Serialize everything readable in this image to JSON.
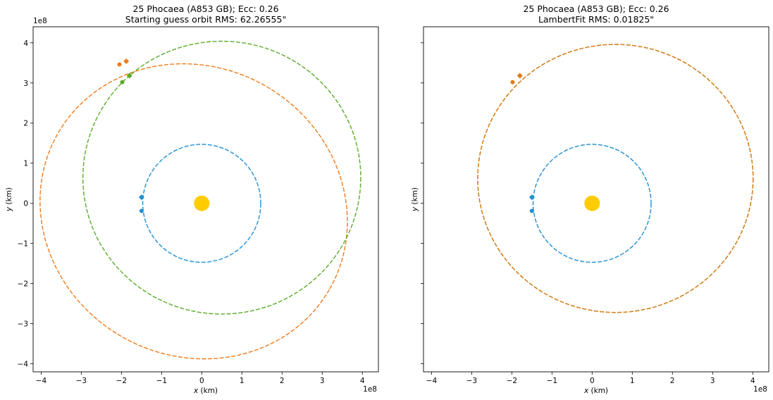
{
  "chart_data": [
    {
      "type": "scatter",
      "title_line1": "25 Phocaea (A853 GB); Ecc: 0.26",
      "title_line2": "Starting guess orbit RMS: 62.26555\"",
      "xlabel_var": "x",
      "xlabel_unit": " (km)",
      "ylabel_var": "y",
      "ylabel_unit": " (km)",
      "x_offset_label": "1e8",
      "y_offset_label": "1e8",
      "xlim": [
        -4.2,
        4.4
      ],
      "ylim": [
        -4.2,
        4.4
      ],
      "xticks": [
        "−4",
        "−3",
        "−2",
        "−1",
        "0",
        "1",
        "2",
        "3",
        "4"
      ],
      "yticks": [
        "−4",
        "−3",
        "−2",
        "−1",
        "0",
        "1",
        "2",
        "3",
        "4"
      ],
      "show_ytick_labels": true,
      "sun": {
        "x": 0,
        "y": 0,
        "color": "#ffcc00"
      },
      "orbits": [
        {
          "cx": 0,
          "cy": 0,
          "a": 1.47,
          "b": 1.47,
          "rot": 0,
          "color": "#1f8fd1"
        },
        {
          "cx": -0.2,
          "cy": -0.2,
          "a": 3.9,
          "b": 3.6,
          "rot": -30,
          "color": "#f07a1a"
        },
        {
          "cx": 0.5,
          "cy": 0.64,
          "a": 3.46,
          "b": 3.4,
          "rot": 0,
          "color": "#5aab2a"
        }
      ],
      "markers": [
        {
          "x": -1.5,
          "y": 0.15,
          "shape": "diamond",
          "color": "#1f8fd1"
        },
        {
          "x": -1.5,
          "y": -0.19,
          "shape": "circle",
          "color": "#1f8fd1"
        },
        {
          "x": -1.88,
          "y": 3.54,
          "shape": "diamond",
          "color": "#f07a1a"
        },
        {
          "x": -2.05,
          "y": 3.46,
          "shape": "circle",
          "color": "#f07a1a"
        },
        {
          "x": -1.8,
          "y": 3.18,
          "shape": "diamond",
          "color": "#5aab2a"
        },
        {
          "x": -1.98,
          "y": 3.02,
          "shape": "circle",
          "color": "#5aab2a"
        }
      ]
    },
    {
      "type": "scatter",
      "title_line1": "25 Phocaea (A853 GB); Ecc: 0.26",
      "title_line2": "LambertFit RMS: 0.01825\"",
      "xlabel_var": "x",
      "xlabel_unit": " (km)",
      "ylabel_var": "y",
      "ylabel_unit": " (km)",
      "x_offset_label": "1e8",
      "y_offset_label": "",
      "xlim": [
        -4.2,
        4.4
      ],
      "ylim": [
        -4.2,
        4.4
      ],
      "xticks": [
        "−4",
        "−3",
        "−2",
        "−1",
        "0",
        "1",
        "2",
        "3",
        "4"
      ],
      "yticks": [
        "−4",
        "−3",
        "−2",
        "−1",
        "0",
        "1",
        "2",
        "3",
        "4"
      ],
      "show_ytick_labels": false,
      "sun": {
        "x": 0,
        "y": 0,
        "color": "#ffcc00"
      },
      "orbits": [
        {
          "cx": 0,
          "cy": 0,
          "a": 1.47,
          "b": 1.47,
          "rot": 0,
          "color": "#1f8fd1"
        },
        {
          "cx": 0.58,
          "cy": 0.62,
          "a": 3.43,
          "b": 3.34,
          "rot": 0,
          "color": "#5aab2a"
        },
        {
          "cx": 0.58,
          "cy": 0.62,
          "a": 3.43,
          "b": 3.34,
          "rot": 0,
          "color": "#e07a1a"
        }
      ],
      "markers": [
        {
          "x": -1.5,
          "y": 0.15,
          "shape": "diamond",
          "color": "#1f8fd1"
        },
        {
          "x": -1.5,
          "y": -0.19,
          "shape": "circle",
          "color": "#1f8fd1"
        },
        {
          "x": -1.8,
          "y": 3.18,
          "shape": "diamond",
          "color": "#e07a1a"
        },
        {
          "x": -1.98,
          "y": 3.02,
          "shape": "circle",
          "color": "#e07a1a"
        }
      ]
    }
  ]
}
